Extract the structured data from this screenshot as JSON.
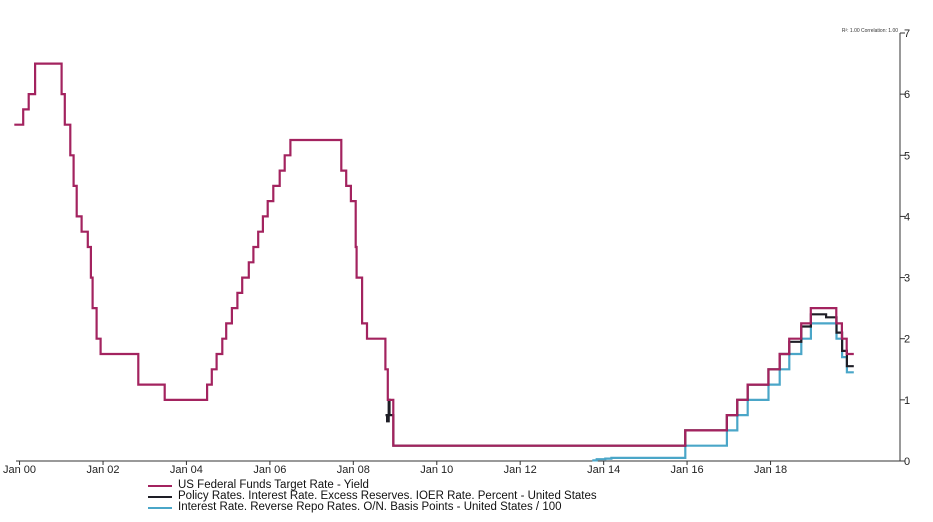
{
  "corner_note": "R²: 1.00 Correlation: 1.00",
  "chart_data": {
    "type": "line",
    "y_axis_side": "right",
    "ylim": [
      0,
      7
    ],
    "y_ticks": [
      "0",
      "1",
      "2",
      "3",
      "4",
      "5",
      "6",
      "7"
    ],
    "x_range": [
      "1999-12-01",
      "2019-09-01"
    ],
    "x_ticks": [
      {
        "label": "Jan 00",
        "date": "2000-01-01"
      },
      {
        "label": "Jan 02",
        "date": "2002-01-01"
      },
      {
        "label": "Jan 04",
        "date": "2004-01-01"
      },
      {
        "label": "Jan 06",
        "date": "2006-01-01"
      },
      {
        "label": "Jan 08",
        "date": "2008-01-01"
      },
      {
        "label": "Jan 10",
        "date": "2010-01-01"
      },
      {
        "label": "Jan 12",
        "date": "2012-01-01"
      },
      {
        "label": "Jan 14",
        "date": "2014-01-01"
      },
      {
        "label": "Jan 16",
        "date": "2016-01-01"
      },
      {
        "label": "Jan 18",
        "date": "2018-01-01"
      }
    ],
    "legend_position": "bottom-left",
    "series": [
      {
        "name": "US Federal Funds Target Rate - Yield",
        "color": "#a3235f",
        "points": [
          [
            "1999-11-16",
            5.5
          ],
          [
            "2000-02-02",
            5.75
          ],
          [
            "2000-03-21",
            6.0
          ],
          [
            "2000-05-16",
            6.5
          ],
          [
            "2001-01-03",
            6.0
          ],
          [
            "2001-01-31",
            5.5
          ],
          [
            "2001-03-20",
            5.0
          ],
          [
            "2001-04-18",
            4.5
          ],
          [
            "2001-05-15",
            4.0
          ],
          [
            "2001-06-27",
            3.75
          ],
          [
            "2001-08-21",
            3.5
          ],
          [
            "2001-09-17",
            3.0
          ],
          [
            "2001-10-02",
            2.5
          ],
          [
            "2001-11-06",
            2.0
          ],
          [
            "2001-12-11",
            1.75
          ],
          [
            "2002-11-06",
            1.25
          ],
          [
            "2003-06-25",
            1.0
          ],
          [
            "2004-06-30",
            1.25
          ],
          [
            "2004-08-10",
            1.5
          ],
          [
            "2004-09-21",
            1.75
          ],
          [
            "2004-11-10",
            2.0
          ],
          [
            "2004-12-14",
            2.25
          ],
          [
            "2005-02-02",
            2.5
          ],
          [
            "2005-03-22",
            2.75
          ],
          [
            "2005-05-03",
            3.0
          ],
          [
            "2005-06-30",
            3.25
          ],
          [
            "2005-08-09",
            3.5
          ],
          [
            "2005-09-20",
            3.75
          ],
          [
            "2005-11-01",
            4.0
          ],
          [
            "2005-12-13",
            4.25
          ],
          [
            "2006-01-31",
            4.5
          ],
          [
            "2006-03-28",
            4.75
          ],
          [
            "2006-05-10",
            5.0
          ],
          [
            "2006-06-29",
            5.25
          ],
          [
            "2007-09-18",
            4.75
          ],
          [
            "2007-10-31",
            4.5
          ],
          [
            "2007-12-11",
            4.25
          ],
          [
            "2008-01-22",
            3.5
          ],
          [
            "2008-01-30",
            3.0
          ],
          [
            "2008-03-18",
            2.25
          ],
          [
            "2008-04-30",
            2.0
          ],
          [
            "2008-10-08",
            1.5
          ],
          [
            "2008-10-29",
            1.0
          ],
          [
            "2008-12-16",
            0.25
          ],
          [
            "2015-12-16",
            0.5
          ],
          [
            "2016-12-14",
            0.75
          ],
          [
            "2017-03-15",
            1.0
          ],
          [
            "2017-06-14",
            1.25
          ],
          [
            "2017-12-13",
            1.5
          ],
          [
            "2018-03-21",
            1.75
          ],
          [
            "2018-06-13",
            2.0
          ],
          [
            "2018-09-26",
            2.25
          ],
          [
            "2018-12-19",
            2.5
          ],
          [
            "2019-07-31",
            2.25
          ],
          [
            "2019-09-18",
            2.0
          ],
          [
            "2019-10-30",
            1.75
          ],
          [
            "2019-12-31",
            1.75
          ]
        ]
      },
      {
        "name": "Policy Rates. Interest Rate. Excess Reserves. IOER Rate. Percent - United States",
        "color": "#1e1e26",
        "points": [
          [
            "2008-10-09",
            0.75
          ],
          [
            "2008-10-23",
            0.65
          ],
          [
            "2008-11-06",
            1.0
          ],
          [
            "2008-11-12",
            1.0
          ],
          [
            "2008-11-13",
            0.75
          ],
          [
            "2008-12-17",
            0.25
          ],
          [
            "2015-12-17",
            0.5
          ],
          [
            "2016-12-15",
            0.75
          ],
          [
            "2017-03-16",
            1.0
          ],
          [
            "2017-06-15",
            1.25
          ],
          [
            "2017-12-14",
            1.5
          ],
          [
            "2018-03-22",
            1.75
          ],
          [
            "2018-06-14",
            1.95
          ],
          [
            "2018-09-27",
            2.2
          ],
          [
            "2018-12-20",
            2.4
          ],
          [
            "2019-05-02",
            2.35
          ],
          [
            "2019-08-01",
            2.1
          ],
          [
            "2019-09-19",
            1.8
          ],
          [
            "2019-10-31",
            1.55
          ],
          [
            "2019-12-31",
            1.55
          ]
        ]
      },
      {
        "name": "Interest Rate. Reverse Repo Rates. O/N. Basis Points - United States / 100",
        "color": "#4aa6c8",
        "points": [
          [
            "2013-09-23",
            0.01
          ],
          [
            "2013-11-01",
            0.03
          ],
          [
            "2014-01-15",
            0.04
          ],
          [
            "2014-03-10",
            0.05
          ],
          [
            "2014-06-01",
            0.05
          ],
          [
            "2015-12-17",
            0.25
          ],
          [
            "2016-12-15",
            0.5
          ],
          [
            "2017-03-16",
            0.75
          ],
          [
            "2017-06-15",
            1.0
          ],
          [
            "2017-12-14",
            1.25
          ],
          [
            "2018-03-22",
            1.5
          ],
          [
            "2018-06-14",
            1.75
          ],
          [
            "2018-09-27",
            2.0
          ],
          [
            "2018-12-20",
            2.25
          ],
          [
            "2019-08-01",
            2.0
          ],
          [
            "2019-09-19",
            1.7
          ],
          [
            "2019-10-31",
            1.45
          ],
          [
            "2019-12-31",
            1.45
          ]
        ]
      }
    ]
  }
}
